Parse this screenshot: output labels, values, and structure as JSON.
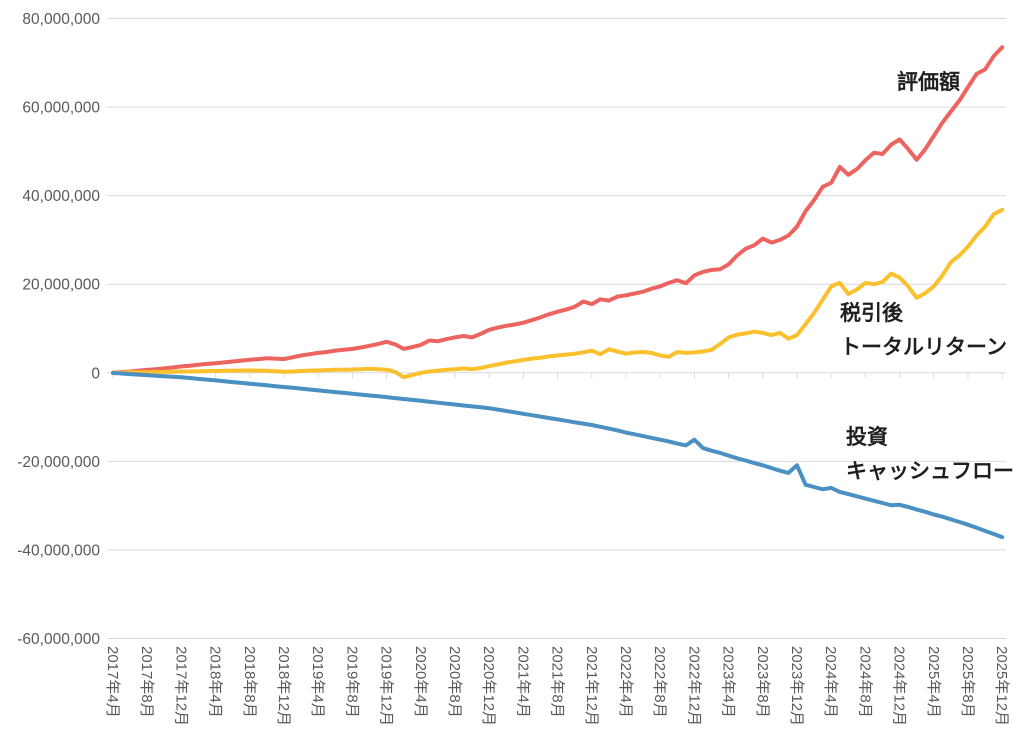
{
  "chart_data": {
    "type": "line",
    "title": "",
    "grid": "horizontal",
    "legend_position": "none (direct line annotations)",
    "x_axis": {
      "start": "2017年4月",
      "end": "2025年12月",
      "interval": "monthly (labels every 4 months, rotated 90°)",
      "tick_labels": [
        "2017年4月",
        "2017年8月",
        "2017年12月",
        "2018年4月",
        "2018年8月",
        "2018年12月",
        "2019年4月",
        "2019年8月",
        "2019年12月",
        "2020年4月",
        "2020年8月",
        "2020年12月",
        "2021年4月",
        "2021年8月",
        "2021年12月",
        "2022年4月",
        "2022年8月",
        "2022年12月",
        "2023年4月",
        "2023年8月",
        "2023年12月",
        "2024年4月",
        "2024年8月",
        "2024年12月",
        "2025年4月",
        "2025年8月",
        "2025年12月"
      ]
    },
    "y_axis": {
      "ylim": [
        -60000000,
        80000000
      ],
      "ticks": [
        80000000,
        60000000,
        40000000,
        20000000,
        0,
        -20000000,
        -40000000,
        -60000000
      ],
      "tick_labels": [
        "80,000,000",
        "60,000,000",
        "40,000,000",
        "20,000,000",
        "0",
        "-20,000,000",
        "-40,000,000",
        "-60,000,000"
      ]
    },
    "series_labels": {
      "valuation": "評価額",
      "after_tax_line1": "税引後",
      "after_tax_line2": "トータルリターン",
      "cashflow_line1": "投資",
      "cashflow_line2": "キャッシュフロー"
    },
    "colors": {
      "valuation": "#ec6360",
      "after_tax_total_return": "#fbc02d",
      "investment_cash_flow": "#4a90c2",
      "gridline": "#d9d9d9",
      "axis_text": "#595959",
      "annotation_text": "#1f1f1f"
    },
    "series": [
      {
        "name": "評価額",
        "color": "#ec6360",
        "values": [
          50000,
          150000,
          300000,
          500000,
          650000,
          800000,
          1000000,
          1200000,
          1450000,
          1600000,
          1800000,
          2000000,
          2150000,
          2350000,
          2550000,
          2750000,
          2950000,
          3100000,
          3300000,
          3200000,
          3100000,
          3500000,
          3900000,
          4200000,
          4500000,
          4700000,
          5000000,
          5200000,
          5400000,
          5700000,
          6100000,
          6500000,
          7000000,
          6400000,
          5400000,
          5800000,
          6300000,
          7300000,
          7100000,
          7600000,
          8000000,
          8300000,
          8000000,
          8800000,
          9700000,
          10200000,
          10600000,
          10900000,
          11300000,
          11900000,
          12500000,
          13200000,
          13800000,
          14300000,
          14900000,
          16100000,
          15500000,
          16600000,
          16300000,
          17200000,
          17500000,
          17900000,
          18300000,
          19000000,
          19500000,
          20300000,
          20900000,
          20200000,
          22000000,
          22800000,
          23200000,
          23400000,
          24500000,
          26500000,
          28000000,
          28800000,
          30300000,
          29400000,
          30000000,
          31000000,
          33000000,
          36500000,
          39000000,
          42000000,
          42900000,
          46500000,
          44700000,
          46000000,
          48000000,
          49700000,
          49400000,
          51500000,
          52700000,
          50500000,
          48100000,
          50500000,
          53500000,
          56500000,
          59000000,
          61500000,
          64500000,
          67500000,
          68500000,
          71500000,
          73500000
        ]
      },
      {
        "name": "税引後トータルリターン",
        "color": "#fbc02d",
        "values": [
          0,
          50000,
          100000,
          100000,
          150000,
          200000,
          200000,
          250000,
          300000,
          300000,
          350000,
          400000,
          400000,
          450000,
          500000,
          500000,
          550000,
          500000,
          450000,
          350000,
          250000,
          300000,
          400000,
          500000,
          550000,
          600000,
          700000,
          700000,
          750000,
          800000,
          900000,
          800000,
          700000,
          200000,
          -1000000,
          -500000,
          0,
          300000,
          500000,
          700000,
          800000,
          1000000,
          800000,
          1100000,
          1500000,
          1900000,
          2300000,
          2600000,
          2900000,
          3200000,
          3400000,
          3700000,
          3900000,
          4100000,
          4300000,
          4600000,
          5000000,
          4200000,
          5300000,
          4800000,
          4300000,
          4600000,
          4700000,
          4500000,
          3900000,
          3600000,
          4700000,
          4500000,
          4600000,
          4800000,
          5200000,
          6500000,
          8000000,
          8600000,
          8900000,
          9300000,
          9000000,
          8500000,
          9000000,
          7700000,
          8500000,
          11000000,
          13500000,
          16500000,
          19500000,
          20300000,
          17800000,
          18800000,
          20300000,
          20000000,
          20500000,
          22400000,
          21500000,
          19500000,
          16900000,
          18000000,
          19500000,
          22000000,
          25000000,
          26500000,
          28500000,
          31000000,
          33000000,
          35800000,
          36800000
        ]
      },
      {
        "name": "投資キャッシュフロー",
        "color": "#4a90c2",
        "values": [
          -50000,
          -170000,
          -290000,
          -410000,
          -530000,
          -650000,
          -770000,
          -890000,
          -1000000,
          -1180000,
          -1370000,
          -1550000,
          -1730000,
          -1920000,
          -2100000,
          -2280000,
          -2470000,
          -2650000,
          -2830000,
          -3020000,
          -3200000,
          -3390000,
          -3580000,
          -3770000,
          -3970000,
          -4160000,
          -4350000,
          -4540000,
          -4730000,
          -4920000,
          -5120000,
          -5310000,
          -5500000,
          -5710000,
          -5920000,
          -6130000,
          -6330000,
          -6540000,
          -6750000,
          -6960000,
          -7170000,
          -7380000,
          -7580000,
          -7790000,
          -8000000,
          -8320000,
          -8630000,
          -8950000,
          -9270000,
          -9580000,
          -9900000,
          -10220000,
          -10530000,
          -10850000,
          -11170000,
          -11480000,
          -11800000,
          -12200000,
          -12600000,
          -13000000,
          -13500000,
          -13900000,
          -14300000,
          -14700000,
          -15100000,
          -15500000,
          -16000000,
          -16400000,
          -15100000,
          -17000000,
          -17600000,
          -18100000,
          -18700000,
          -19300000,
          -19800000,
          -20400000,
          -20900000,
          -21500000,
          -22100000,
          -22600000,
          -20900000,
          -25300000,
          -25800000,
          -26300000,
          -26000000,
          -26900000,
          -27400000,
          -27900000,
          -28400000,
          -28900000,
          -29400000,
          -29900000,
          -29800000,
          -30300000,
          -30900000,
          -31400000,
          -32000000,
          -32500000,
          -33100000,
          -33700000,
          -34300000,
          -35000000,
          -35700000,
          -36400000,
          -37100000
        ]
      }
    ]
  }
}
